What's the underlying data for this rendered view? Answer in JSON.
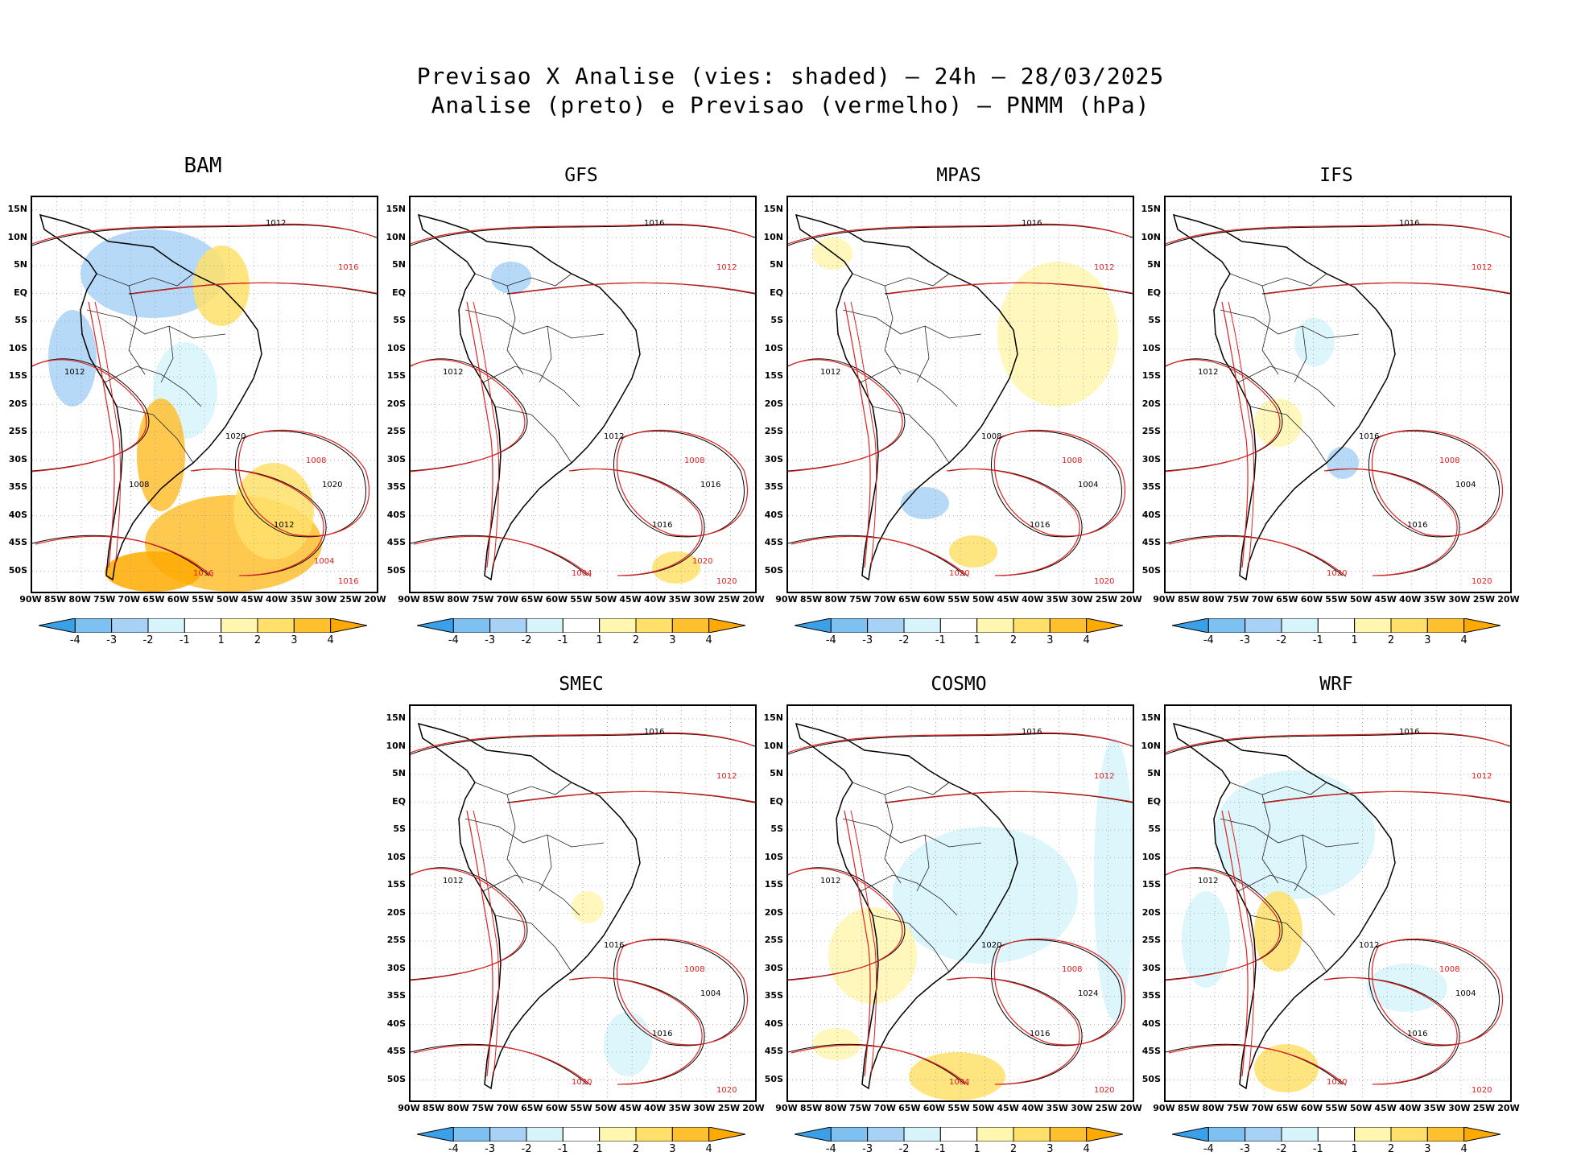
{
  "header": {
    "title_line1": "Previsao X Analise (vies: shaded) – 24h – 28/03/2025",
    "title_line2": "Analise (preto) e Previsao (vermelho) – PNMM (hPa)"
  },
  "axes": {
    "lat_labels": [
      "15N",
      "10N",
      "5N",
      "EQ",
      "5S",
      "10S",
      "15S",
      "20S",
      "25S",
      "30S",
      "35S",
      "40S",
      "45S",
      "50S"
    ],
    "lon_labels": [
      "90W",
      "85W",
      "80W",
      "75W",
      "70W",
      "65W",
      "60W",
      "55W",
      "50W",
      "45W",
      "40W",
      "35W",
      "30W",
      "25W",
      "20W"
    ]
  },
  "colorbar": {
    "labels": [
      "-4",
      "-3",
      "-2",
      "-1",
      "1",
      "2",
      "3",
      "4"
    ],
    "colors": [
      "#3aa0e8",
      "#7ec0f0",
      "#a8d2f5",
      "#d6f4fa",
      "#ffffff",
      "#fff6b0",
      "#ffe06a",
      "#ffc030",
      "#ffaa00"
    ]
  },
  "legend_colors": {
    "analysis": "#000000",
    "forecast": "#e02020"
  },
  "panels": [
    {
      "id": "bam",
      "title": "BAM",
      "isobar_labels": [
        "1012",
        "1016",
        "1012",
        "1008",
        "1012",
        "1016",
        "1020",
        "1016",
        "1020",
        "1004",
        "1008"
      ]
    },
    {
      "id": "gfs",
      "title": "GFS",
      "isobar_labels": [
        "1016",
        "1012",
        "1012",
        "1008",
        "1016",
        "1020",
        "1016",
        "1004",
        "1012",
        "1020"
      ]
    },
    {
      "id": "mpas",
      "title": "MPAS",
      "isobar_labels": [
        "1016",
        "1012",
        "1012",
        "1008",
        "1016",
        "1020",
        "1004",
        "1020",
        "1008"
      ]
    },
    {
      "id": "ifs",
      "title": "IFS",
      "isobar_labels": [
        "1016",
        "1012",
        "1012",
        "1008",
        "1016",
        "1020",
        "1004",
        "1020",
        "1016"
      ]
    },
    {
      "id": "smec",
      "title": "SMEC",
      "isobar_labels": [
        "1016",
        "1012",
        "1012",
        "1008",
        "1016",
        "1020",
        "1004",
        "1020",
        "1016"
      ]
    },
    {
      "id": "cosmo",
      "title": "COSMO",
      "isobar_labels": [
        "1016",
        "1012",
        "1012",
        "1008",
        "1016",
        "1020",
        "1024",
        "1004",
        "1020"
      ]
    },
    {
      "id": "wrf",
      "title": "WRF",
      "isobar_labels": [
        "1016",
        "1012",
        "1012",
        "1008",
        "1016",
        "1020",
        "1004",
        "1020",
        "1012"
      ]
    }
  ]
}
